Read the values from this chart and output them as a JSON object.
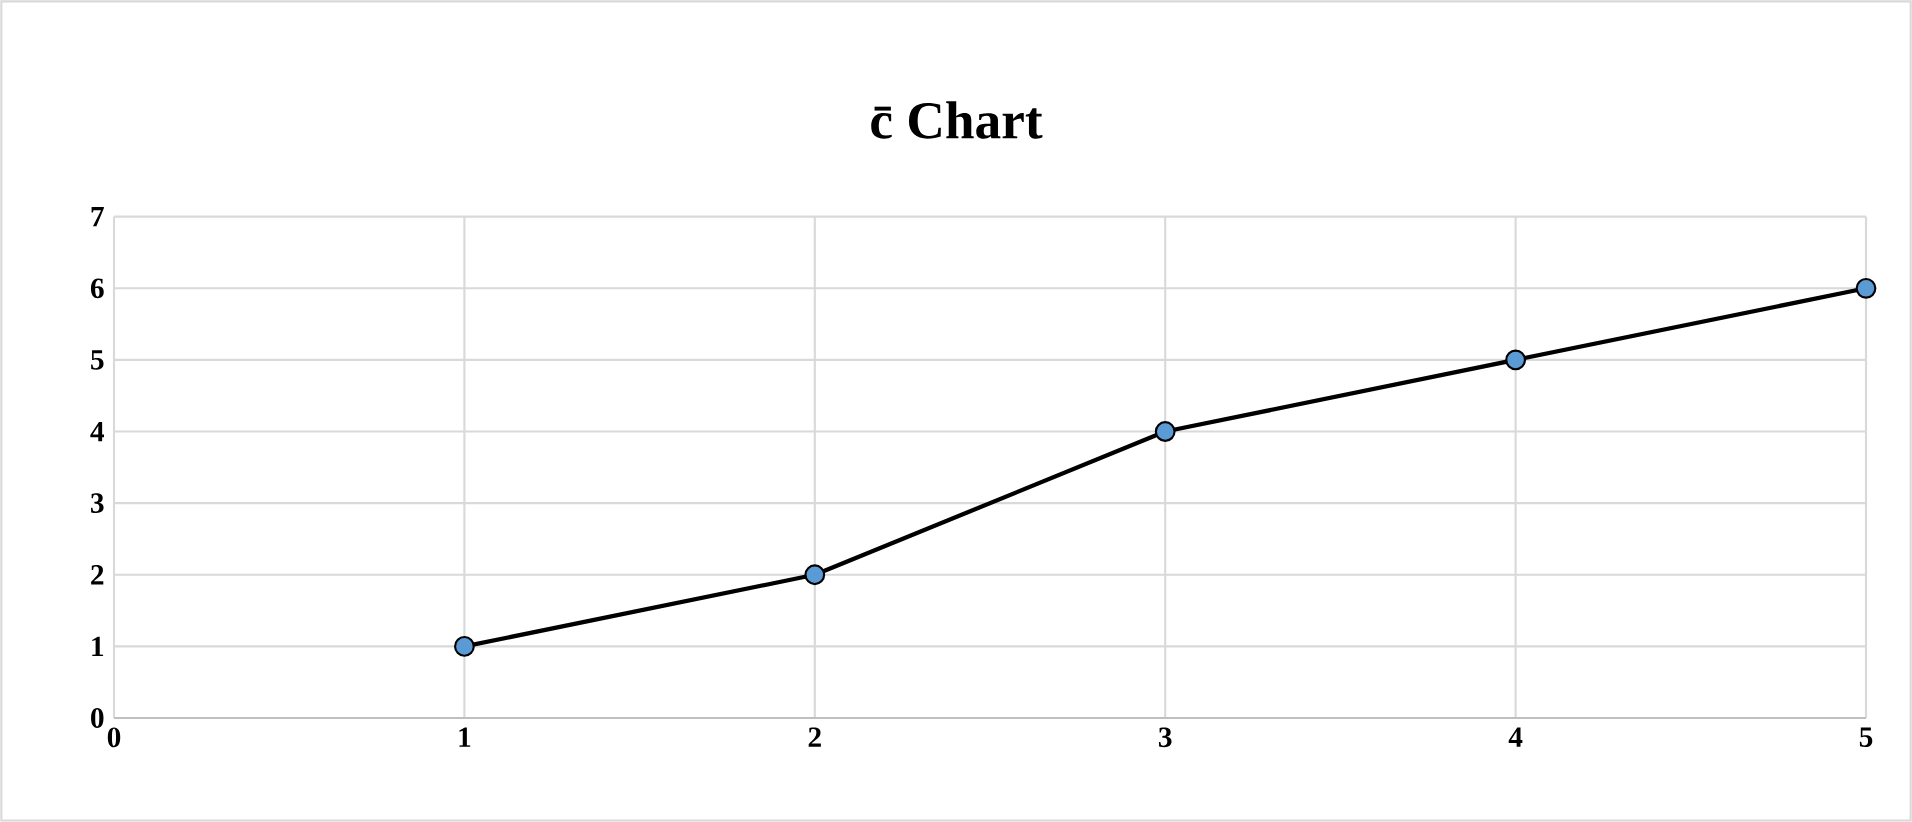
{
  "chart_data": {
    "type": "line",
    "title": "c̄ Chart",
    "x": [
      1,
      2,
      3,
      4,
      5
    ],
    "series": [
      {
        "color": "#5b9bd5",
        "values": [
          1,
          2,
          4,
          5,
          6
        ]
      }
    ],
    "xlim": [
      0,
      5
    ],
    "xticks": [
      0,
      1,
      2,
      3,
      4,
      5
    ],
    "ylim": [
      0,
      7
    ],
    "yticks": [
      0,
      1,
      2,
      3,
      4,
      5,
      6,
      7
    ],
    "grid": true,
    "marker": "circle",
    "line_style": "solid"
  }
}
